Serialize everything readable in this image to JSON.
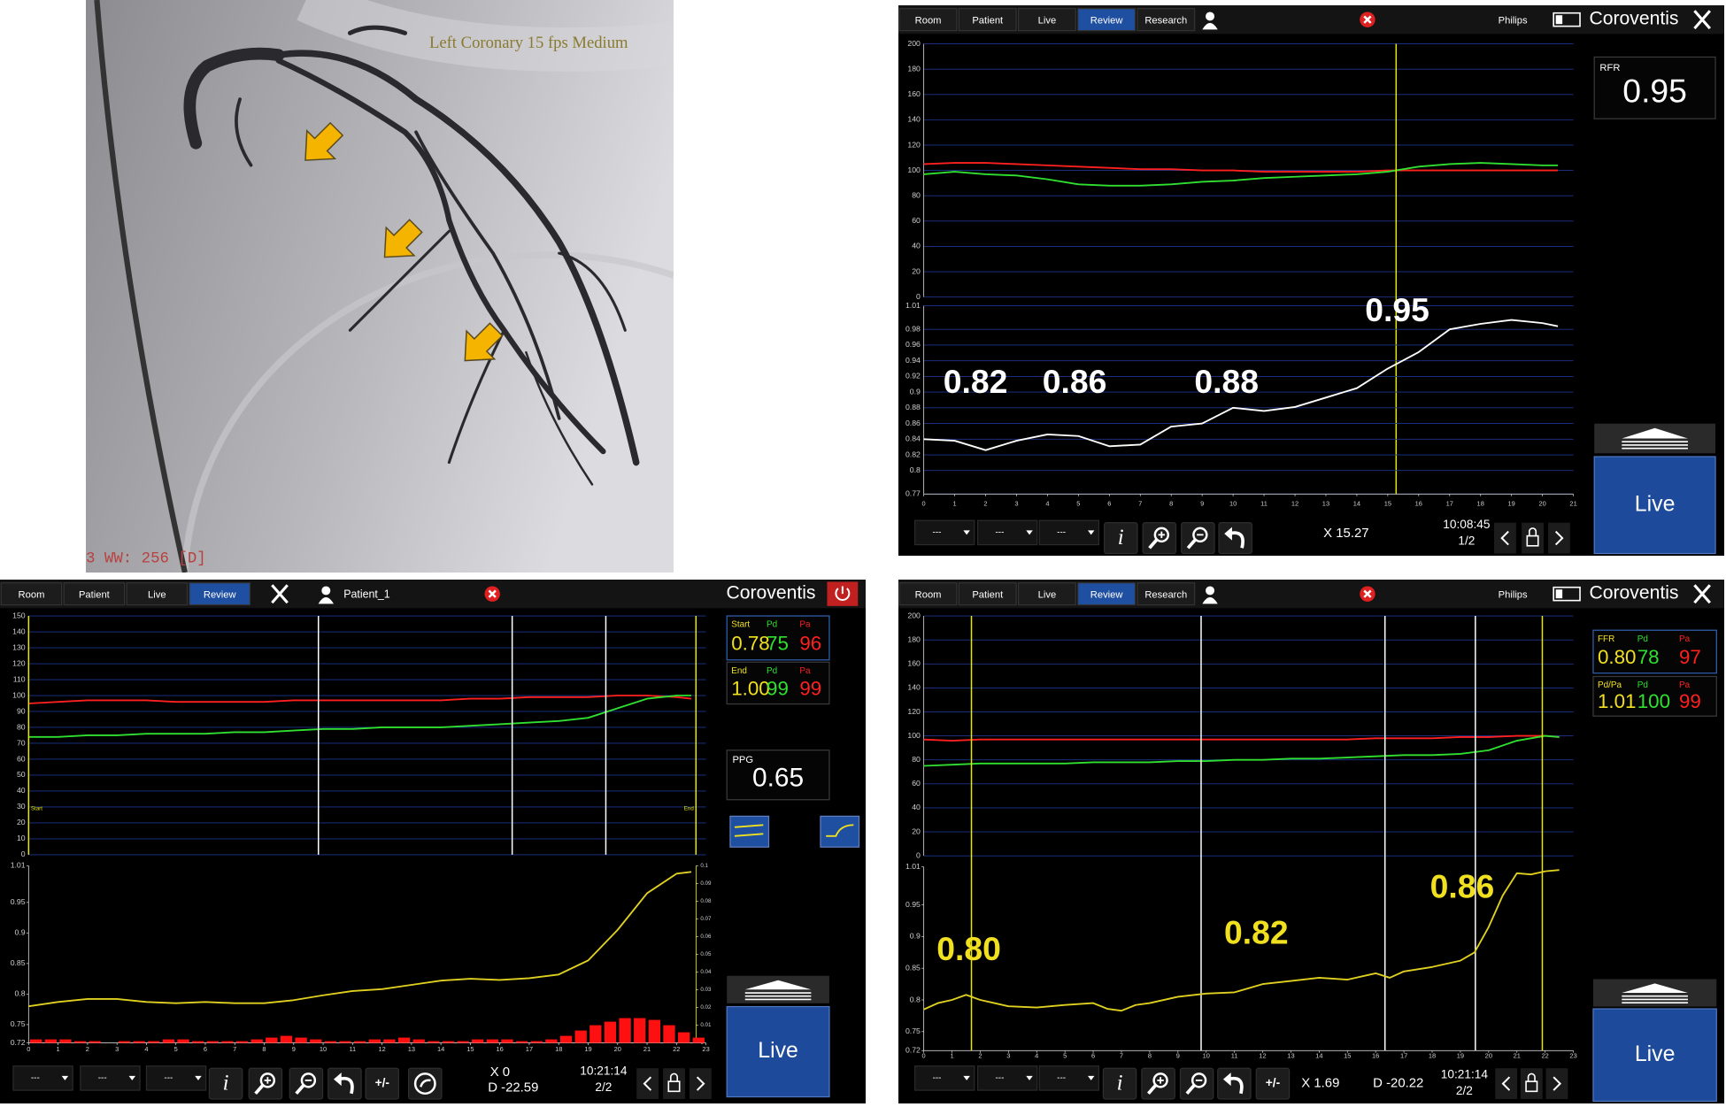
{
  "angiogram": {
    "caption": "Left Coronary 15 fps Medium",
    "footer": "3 WW: 256 [D]"
  },
  "panels": [
    {
      "tabs": [
        "Room",
        "Patient",
        "Live",
        "Review",
        "Research"
      ],
      "active_tab": 3,
      "vendor": "Philips",
      "brand": "Coroventis",
      "boxes": [
        {
          "labels": [
            "RFR"
          ],
          "values": [
            "0.95"
          ]
        }
      ],
      "live": "Live",
      "toolbar": {
        "dropdowns": [
          "---",
          "---",
          "---"
        ],
        "info": "i",
        "readouts": [
          "X 15.27"
        ],
        "time": "10:08:45",
        "page": "1/2"
      }
    },
    {
      "tabs": [
        "Room",
        "Patient",
        "Live",
        "Review"
      ],
      "active_tab": 3,
      "user": "Patient_1",
      "brand": "Coroventis",
      "boxes": [
        {
          "labels": [
            "Start",
            "Pd",
            "Pa"
          ],
          "values": [
            "0.78",
            "75",
            "96"
          ]
        },
        {
          "labels": [
            "End",
            "Pd",
            "Pa"
          ],
          "values": [
            "1.00",
            "99",
            "99"
          ]
        }
      ],
      "ppg": {
        "label": "PPG",
        "value": "0.65"
      },
      "live": "Live",
      "toolbar": {
        "dropdowns": [
          "---",
          "---",
          "---"
        ],
        "info": "i",
        "plus_minus": "+/-",
        "readouts": [
          "X 0",
          "D -22.59"
        ],
        "time": "10:21:14",
        "page": "2/2"
      }
    },
    {
      "tabs": [
        "Room",
        "Patient",
        "Live",
        "Review",
        "Research"
      ],
      "active_tab": 3,
      "vendor": "Philips",
      "brand": "Coroventis",
      "boxes": [
        {
          "labels": [
            "FFR",
            "Pd",
            "Pa"
          ],
          "values": [
            "0.80",
            "78",
            "97"
          ]
        },
        {
          "labels": [
            "Pd/Pa",
            "Pd",
            "Pa"
          ],
          "values": [
            "1.01",
            "100",
            "99"
          ]
        }
      ],
      "live": "Live",
      "toolbar": {
        "dropdowns": [
          "---",
          "---",
          "---"
        ],
        "info": "i",
        "plus_minus": "+/-",
        "readouts": [
          "X 1.69",
          "D -20.22"
        ],
        "time": "10:21:14",
        "page": "2/2"
      }
    }
  ],
  "chart_data": [
    {
      "type": "line",
      "xlim": [
        0,
        21
      ],
      "ylim": [
        0,
        200
      ],
      "yticks": [
        0,
        20,
        40,
        60,
        80,
        100,
        120,
        140,
        160,
        180,
        200
      ],
      "grid": true,
      "x": [
        0,
        1,
        2,
        3,
        4,
        5,
        6,
        7,
        8,
        9,
        10,
        11,
        12,
        13,
        14,
        15,
        16,
        17,
        18,
        19,
        20,
        20.5
      ],
      "series": [
        {
          "color": "#ff2020",
          "values": [
            105,
            106,
            106,
            105,
            104,
            103,
            102,
            101,
            101,
            100,
            100,
            99,
            99,
            99,
            99,
            100,
            100,
            100,
            100,
            100,
            100,
            100
          ]
        },
        {
          "color": "#30e030",
          "values": [
            97,
            99,
            97,
            96,
            93,
            89,
            88,
            88,
            89,
            91,
            92,
            94,
            95,
            96,
            97,
            99,
            103,
            105,
            106,
            105,
            104,
            104
          ]
        }
      ],
      "markers": [
        {
          "x": 15.27,
          "color": "#e8e800"
        }
      ]
    },
    {
      "type": "line",
      "xlim": [
        0,
        21
      ],
      "ylim": [
        0.77,
        1.01
      ],
      "yticks": [
        0.77,
        0.8,
        0.82,
        0.84,
        0.86,
        0.88,
        0.9,
        0.92,
        0.94,
        0.96,
        0.98,
        1.01
      ],
      "grid": true,
      "xticks": [
        0,
        1,
        2,
        3,
        4,
        5,
        6,
        7,
        8,
        9,
        10,
        11,
        12,
        13,
        14,
        15,
        16,
        17,
        18,
        19,
        20,
        21
      ],
      "x": [
        0,
        1,
        2,
        3,
        4,
        5,
        6,
        7,
        8,
        9,
        10,
        11,
        12,
        13,
        14,
        15,
        16,
        17,
        18,
        19,
        20,
        20.5
      ],
      "series": [
        {
          "color": "#ffffff",
          "values": [
            0.84,
            0.838,
            0.826,
            0.838,
            0.846,
            0.844,
            0.831,
            0.833,
            0.856,
            0.86,
            0.88,
            0.876,
            0.881,
            0.893,
            0.905,
            0.93,
            0.951,
            0.98,
            0.987,
            0.992,
            0.988,
            0.984
          ]
        }
      ],
      "annotations": [
        "0.82",
        "0.86",
        "0.88",
        "0.95"
      ]
    },
    {
      "type": "line",
      "xlim": [
        0,
        23
      ],
      "ylim": [
        0,
        150
      ],
      "yticks": [
        0,
        10,
        20,
        30,
        40,
        50,
        60,
        70,
        80,
        90,
        100,
        110,
        120,
        130,
        140,
        150
      ],
      "grid": true,
      "x": [
        0,
        1,
        2,
        3,
        4,
        5,
        6,
        7,
        8,
        9,
        10,
        11,
        12,
        13,
        14,
        15,
        16,
        17,
        18,
        19,
        20,
        21,
        22,
        22.5
      ],
      "series": [
        {
          "color": "#ff2020",
          "values": [
            95,
            96,
            97,
            97,
            97,
            96,
            96,
            96,
            96,
            97,
            97,
            97,
            97,
            97,
            97,
            98,
            98,
            99,
            99,
            99,
            100,
            100,
            99,
            98
          ]
        },
        {
          "color": "#30e030",
          "values": [
            74,
            74,
            75,
            75,
            76,
            76,
            76,
            77,
            77,
            78,
            79,
            79,
            80,
            80,
            80,
            81,
            82,
            83,
            84,
            86,
            92,
            98,
            100,
            100
          ]
        }
      ],
      "markers": [
        {
          "x": 0,
          "color": "#e8e800",
          "label": "Start"
        },
        {
          "x": 9.84,
          "color": "#ffffff"
        },
        {
          "x": 16.42,
          "color": "#ffffff"
        },
        {
          "x": 19.6,
          "color": "#ffffff"
        },
        {
          "x": 22.66,
          "color": "#e8e800",
          "label": "End"
        }
      ]
    },
    {
      "type": "line",
      "xlim": [
        0,
        23
      ],
      "ylim": [
        0.72,
        1.01
      ],
      "yticks": [
        0.72,
        0.75,
        0.8,
        0.85,
        0.9,
        0.95,
        1.01
      ],
      "grid": false,
      "y2lim": [
        0,
        0.1
      ],
      "y2ticks": [
        0,
        0.01,
        0.02,
        0.03,
        0.04,
        0.05,
        0.06,
        0.07,
        0.08,
        0.09,
        0.1
      ],
      "xticks": [
        0,
        1,
        2,
        3,
        4,
        5,
        6,
        7,
        8,
        9,
        10,
        11,
        12,
        13,
        14,
        15,
        16,
        17,
        18,
        19,
        20,
        21,
        22,
        23
      ],
      "x": [
        0,
        1,
        2,
        3,
        4,
        5,
        6,
        7,
        8,
        9,
        10,
        11,
        12,
        13,
        14,
        15,
        16,
        17,
        18,
        19,
        20,
        21,
        22,
        22.5
      ],
      "series": [
        {
          "color": "#e0d020",
          "values": [
            0.78,
            0.787,
            0.792,
            0.792,
            0.787,
            0.785,
            0.787,
            0.785,
            0.785,
            0.79,
            0.798,
            0.805,
            0.808,
            0.815,
            0.822,
            0.825,
            0.823,
            0.826,
            0.832,
            0.855,
            0.905,
            0.965,
            0.997,
            1.0
          ]
        },
        {
          "type": "bar",
          "axis": "y2",
          "color": "#ff1010",
          "x": [
            0.25,
            0.75,
            1.25,
            1.75,
            2.25,
            2.75,
            3.25,
            3.75,
            4.25,
            4.75,
            5.25,
            5.75,
            6.25,
            6.75,
            7.25,
            7.75,
            8.25,
            8.75,
            9.25,
            9.75,
            10.25,
            10.75,
            11.25,
            11.75,
            12.25,
            12.75,
            13.25,
            13.75,
            14.25,
            14.75,
            15.25,
            15.75,
            16.25,
            16.75,
            17.25,
            17.75,
            18.25,
            18.75,
            19.25,
            19.75,
            20.25,
            20.75,
            21.25,
            21.75,
            22.25,
            22.75
          ],
          "values": [
            0.002,
            0.002,
            0.002,
            0.001,
            0.001,
            0,
            0.001,
            0.001,
            0.001,
            0.002,
            0.002,
            0.001,
            0.001,
            0.001,
            0.001,
            0.002,
            0.003,
            0.004,
            0.003,
            0.002,
            0.001,
            0.001,
            0.001,
            0.002,
            0.002,
            0.003,
            0.002,
            0.001,
            0.001,
            0.001,
            0.002,
            0.002,
            0.002,
            0.001,
            0.001,
            0.002,
            0.004,
            0.007,
            0.01,
            0.012,
            0.014,
            0.014,
            0.013,
            0.01,
            0.006,
            0.003
          ]
        }
      ]
    },
    {
      "type": "line",
      "xlim": [
        0,
        23
      ],
      "ylim": [
        0,
        200
      ],
      "yticks": [
        0,
        20,
        40,
        60,
        80,
        100,
        120,
        140,
        160,
        180,
        200
      ],
      "grid": true,
      "x": [
        0,
        1,
        2,
        3,
        4,
        5,
        6,
        7,
        8,
        9,
        10,
        11,
        12,
        13,
        14,
        15,
        16,
        17,
        18,
        19,
        20,
        21,
        22,
        22.5
      ],
      "series": [
        {
          "color": "#ff2020",
          "values": [
            97,
            96,
            97,
            97,
            97,
            97,
            97,
            97,
            97,
            97,
            97,
            97,
            97,
            97,
            97,
            97,
            98,
            98,
            98,
            99,
            99,
            100,
            100,
            99
          ]
        },
        {
          "color": "#30e030",
          "values": [
            75,
            76,
            77,
            77,
            77,
            77,
            78,
            78,
            78,
            79,
            79,
            80,
            80,
            81,
            81,
            82,
            83,
            84,
            84,
            85,
            88,
            96,
            100,
            99
          ]
        }
      ],
      "markers": [
        {
          "x": 1.69,
          "color": "#e8e800"
        },
        {
          "x": 9.82,
          "color": "#ffffff"
        },
        {
          "x": 16.33,
          "color": "#ffffff"
        },
        {
          "x": 19.53,
          "color": "#ffffff"
        },
        {
          "x": 21.9,
          "color": "#e8e800"
        }
      ]
    },
    {
      "type": "line",
      "xlim": [
        0,
        23
      ],
      "ylim": [
        0.72,
        1.01
      ],
      "yticks": [
        0.72,
        0.75,
        0.8,
        0.85,
        0.9,
        0.95,
        1.01
      ],
      "grid": false,
      "xticks": [
        0,
        1,
        2,
        3,
        4,
        5,
        6,
        7,
        8,
        9,
        10,
        11,
        12,
        13,
        14,
        15,
        16,
        17,
        18,
        19,
        20,
        21,
        22,
        23
      ],
      "x": [
        0,
        0.5,
        1,
        1.5,
        2,
        2.5,
        3,
        4,
        5,
        6,
        6.5,
        7,
        7.5,
        8,
        9,
        10,
        11,
        12,
        13,
        14,
        15,
        16,
        16.5,
        17,
        18,
        19,
        19.5,
        20,
        20.5,
        21,
        21.5,
        22,
        22.5
      ],
      "series": [
        {
          "color": "#e0d020",
          "values": [
            0.785,
            0.795,
            0.8,
            0.808,
            0.8,
            0.795,
            0.79,
            0.788,
            0.792,
            0.795,
            0.786,
            0.783,
            0.792,
            0.795,
            0.805,
            0.81,
            0.812,
            0.825,
            0.83,
            0.835,
            0.832,
            0.842,
            0.835,
            0.845,
            0.852,
            0.862,
            0.875,
            0.915,
            0.965,
            1.0,
            0.998,
            1.003,
            1.005
          ]
        }
      ],
      "annotations": [
        "0.80",
        "0.82",
        "0.86"
      ]
    }
  ]
}
